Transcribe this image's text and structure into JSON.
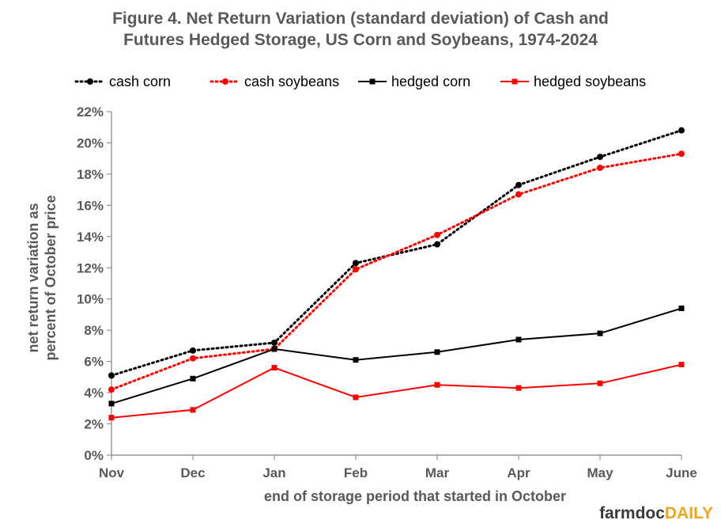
{
  "chart_data": {
    "type": "line",
    "title_lines": [
      "Figure  4. Net Return Variation  (standard  deviation)  of Cash and",
      "Futures  Hedged Storage,  US Corn  and Soybeans,  1974-2024"
    ],
    "xlabel": "end of storage period that started in October",
    "ylabel_lines": [
      "net return variation as",
      "percent of October price"
    ],
    "categories": [
      "Nov",
      "Dec",
      "Jan",
      "Feb",
      "Mar",
      "Apr",
      "May",
      "June"
    ],
    "ylim": [
      0,
      22
    ],
    "yticks": [
      0,
      2,
      4,
      6,
      8,
      10,
      12,
      14,
      16,
      18,
      20,
      22
    ],
    "ytick_labels": [
      "0%",
      "2%",
      "4%",
      "6%",
      "8%",
      "10%",
      "12%",
      "14%",
      "16%",
      "18%",
      "20%",
      "22%"
    ],
    "legend_position": "top",
    "series": [
      {
        "name": "cash corn",
        "color": "#000000",
        "dash": "dotted",
        "marker": "circle",
        "values": [
          5.1,
          6.7,
          7.2,
          12.3,
          13.5,
          17.3,
          19.1,
          20.8
        ]
      },
      {
        "name": "cash soybeans",
        "color": "#ff0000",
        "dash": "dotted",
        "marker": "circle",
        "values": [
          4.2,
          6.2,
          6.8,
          11.9,
          14.1,
          16.7,
          18.4,
          19.3
        ]
      },
      {
        "name": "hedged corn",
        "color": "#000000",
        "dash": "solid",
        "marker": "square",
        "values": [
          3.3,
          4.9,
          6.8,
          6.1,
          6.6,
          7.4,
          7.8,
          9.4
        ]
      },
      {
        "name": "hedged soybeans",
        "color": "#ff0000",
        "dash": "solid",
        "marker": "square",
        "values": [
          2.4,
          2.9,
          5.6,
          3.7,
          4.5,
          4.3,
          4.6,
          5.8
        ]
      }
    ]
  },
  "branding": {
    "part1": "farmdoc",
    "part2": "DAILY"
  }
}
